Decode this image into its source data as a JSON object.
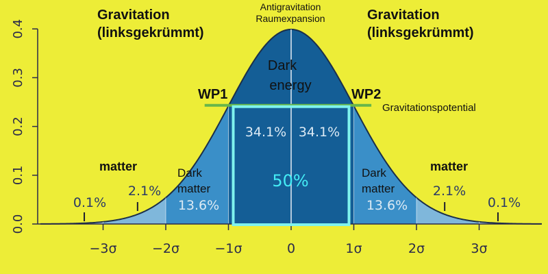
{
  "chart_data": {
    "type": "area",
    "title": "",
    "xlabel": "",
    "ylabel": "",
    "xlim": [
      -4,
      4
    ],
    "ylim": [
      0,
      0.4
    ],
    "x_ticks": [
      -3,
      -2,
      -1,
      0,
      1,
      2,
      3
    ],
    "x_tick_labels": [
      "−3σ",
      "−2σ",
      "−1σ",
      "0",
      "1σ",
      "2σ",
      "3σ"
    ],
    "y_ticks": [
      0.0,
      0.1,
      0.2,
      0.3,
      0.4
    ],
    "y_tick_labels": [
      "0.0",
      "0.1",
      "0.2",
      "0.3",
      "0.4"
    ],
    "grid": false,
    "curve": {
      "name": "normal-distribution",
      "mean": 0,
      "sd": 1
    },
    "bands": [
      {
        "from": -1,
        "to": 0,
        "percent": "34.1%",
        "color": "#145e96"
      },
      {
        "from": 0,
        "to": 1,
        "percent": "34.1%",
        "color": "#145e96"
      },
      {
        "from": -2,
        "to": -1,
        "percent": "13.6%",
        "color": "#3a8fc8"
      },
      {
        "from": 1,
        "to": 2,
        "percent": "13.6%",
        "color": "#3a8fc8"
      },
      {
        "from": -3,
        "to": -2,
        "percent": "2.1%",
        "color": "#7fb7db"
      },
      {
        "from": 2,
        "to": 3,
        "percent": "2.1%",
        "color": "#7fb7db"
      },
      {
        "from": -4,
        "to": -3,
        "percent": "0.1%",
        "color": "#b6d5ea"
      },
      {
        "from": 3,
        "to": 4,
        "percent": "0.1%",
        "color": "#b6d5ea"
      }
    ],
    "center_percent": "50%",
    "threshold_y": 0.242,
    "inflection_points": [
      {
        "label": "WP1",
        "x": -1
      },
      {
        "label": "WP2",
        "x": 1
      }
    ]
  },
  "annotations": {
    "gravitation_left": [
      "Gravitation",
      "(linksgekrümmt)"
    ],
    "gravitation_right": [
      "Gravitation",
      "(linksgekrümmt)"
    ],
    "antigravitation": [
      "Antigravitation",
      "Raumexpansion"
    ],
    "dark_energy": [
      "Dark",
      "energy"
    ],
    "gravitationspotential": "Gravitationspotential",
    "matter_left": "matter",
    "matter_right": "matter",
    "dark_matter_left": [
      "Dark",
      "matter"
    ],
    "dark_matter_right": [
      "Dark",
      "matter"
    ]
  },
  "colors": {
    "background": "#eded37",
    "axis": "#2a2a4a",
    "curve": "#1b2f4a",
    "box": "#7ff3ee",
    "threshold": "#67b64a",
    "dark_energy_text": "#44ecf5",
    "percent_text": "#dceaf4",
    "outer_percent_text": "#2a3a66"
  }
}
